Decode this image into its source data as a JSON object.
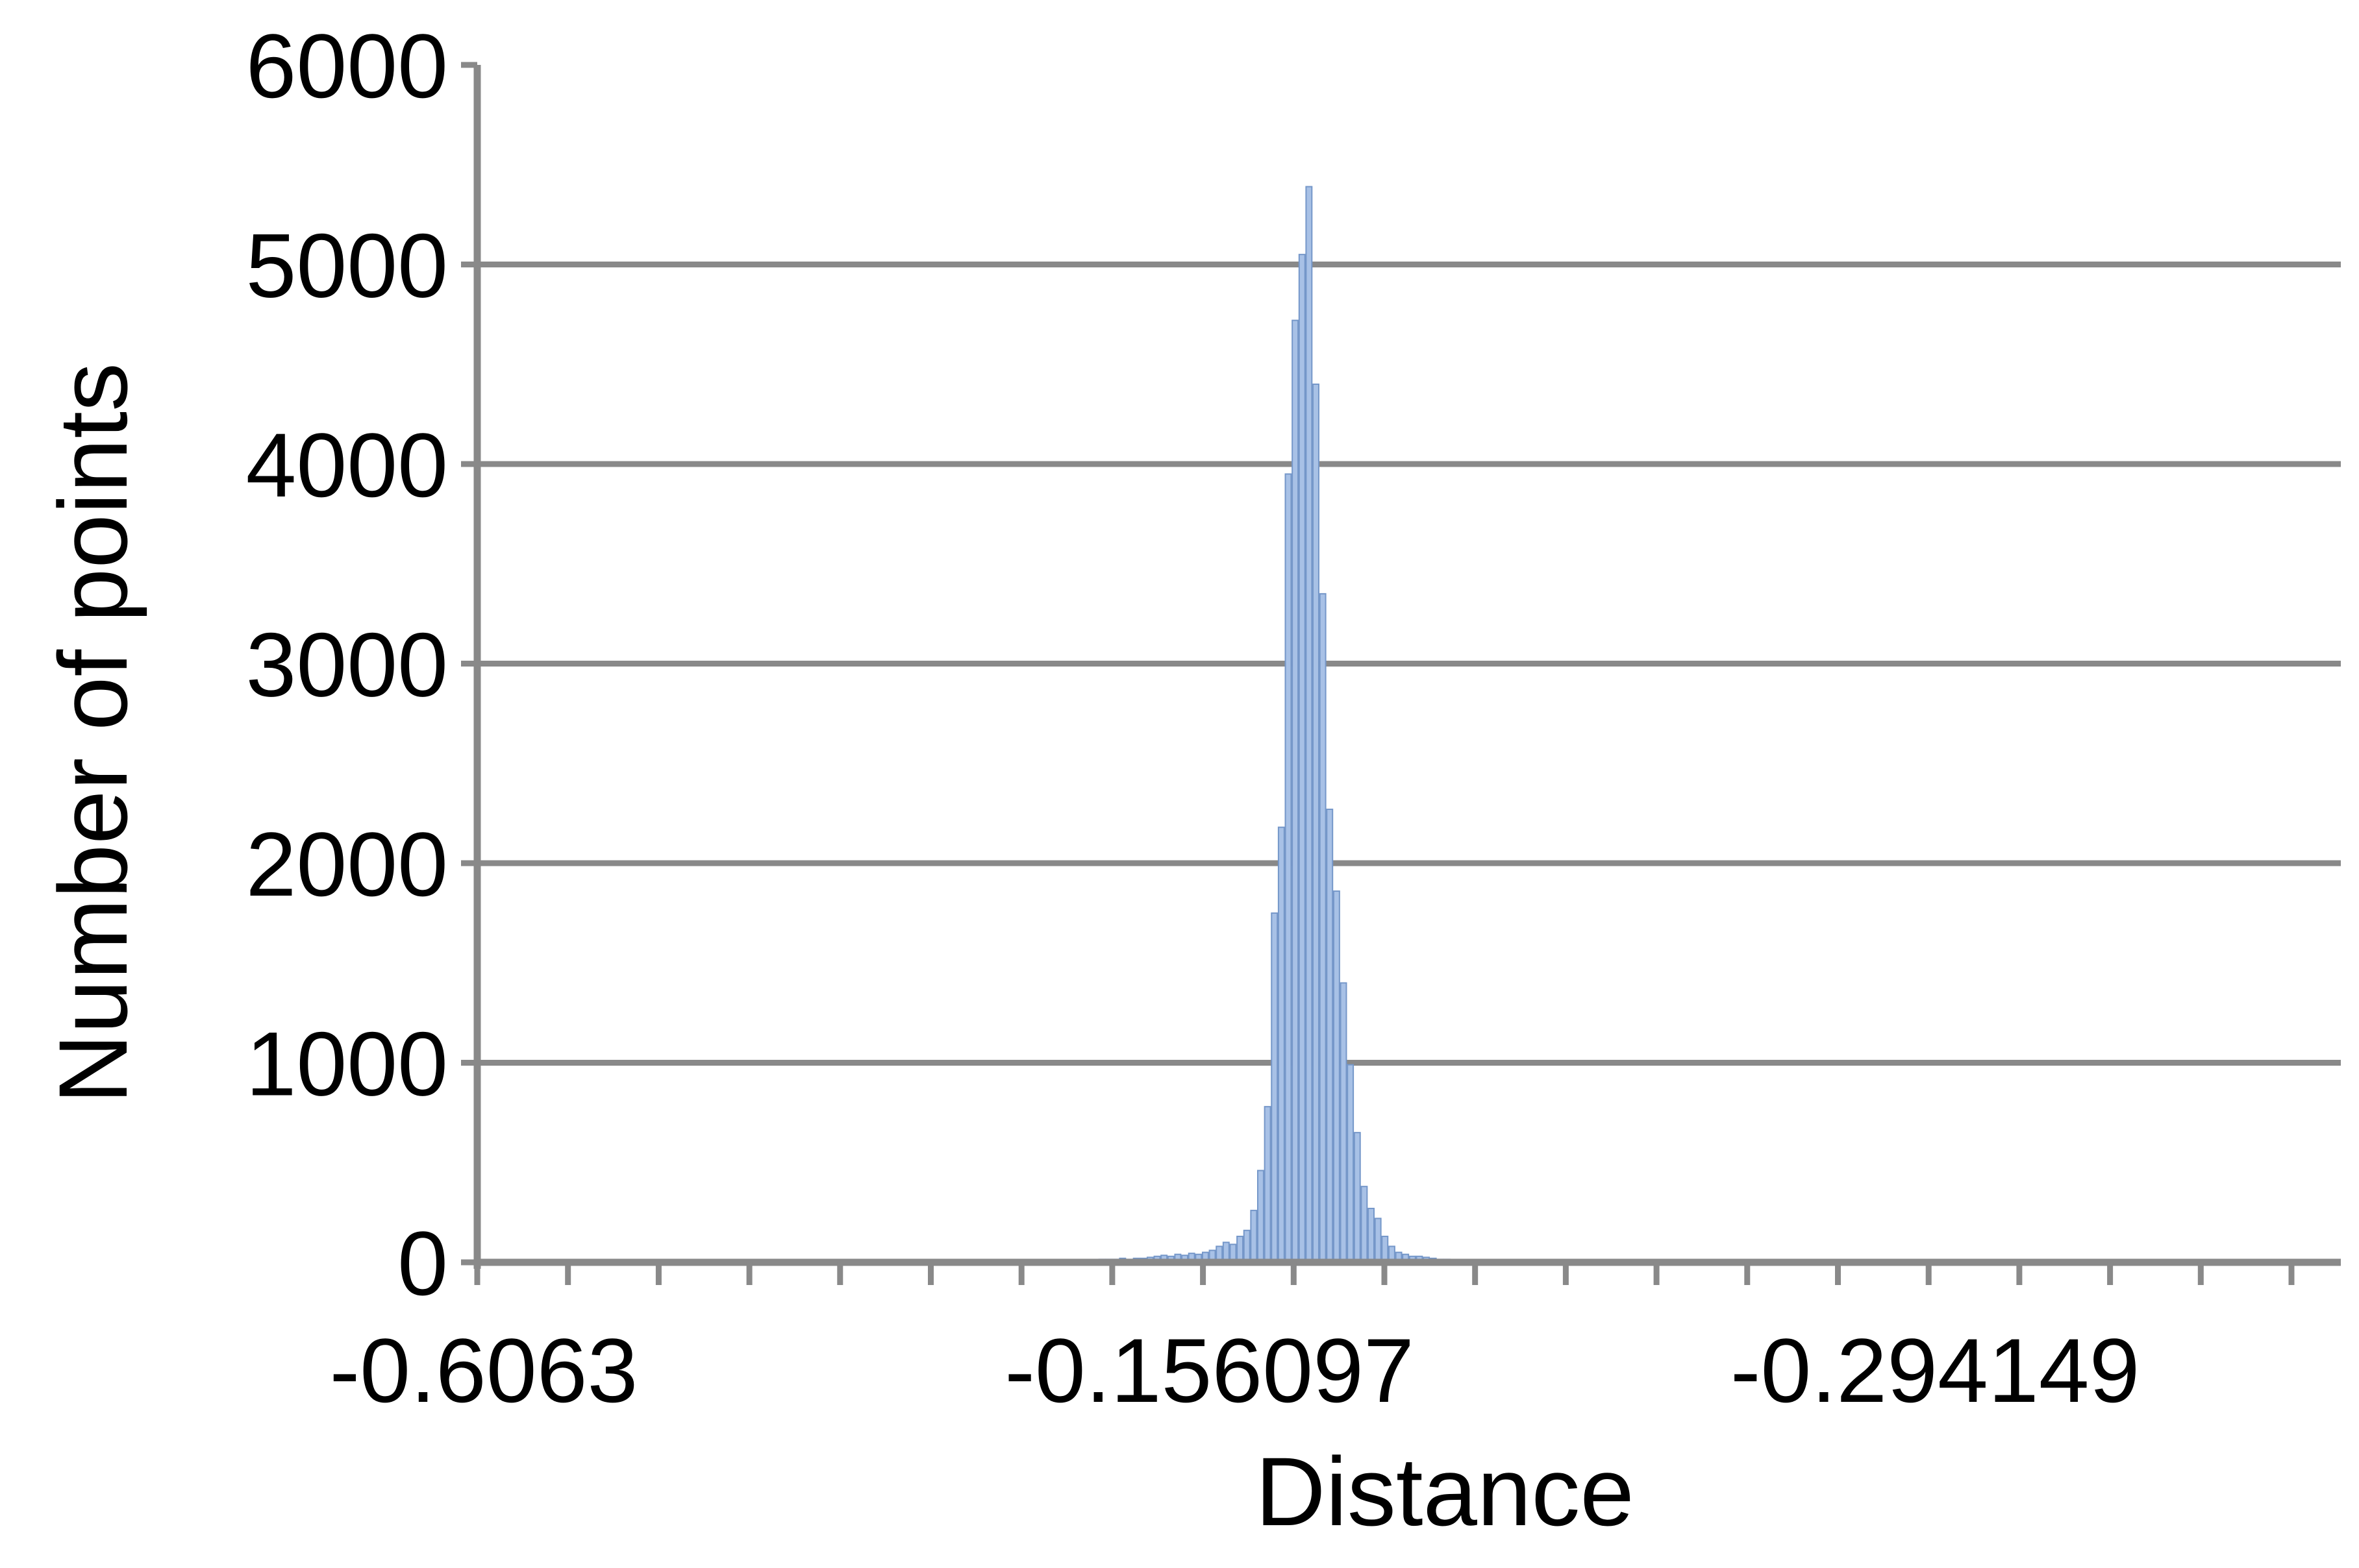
{
  "chart_data": {
    "type": "bar",
    "xlabel": "Distance",
    "ylabel": "Number of points",
    "ylim": [
      0,
      6000
    ],
    "y_ticks": [
      0,
      1000,
      2000,
      3000,
      4000,
      5000,
      6000
    ],
    "x_tick_labels": [
      "-0.6063",
      "-0.156097",
      "-0.294149"
    ],
    "grid": "horizontal",
    "legend": "none",
    "bar_color": "#a8c1e6",
    "bar_edge_color": "#7597c9",
    "values": [
      0,
      0,
      0,
      0,
      0,
      0,
      0,
      0,
      0,
      0,
      0,
      0,
      0,
      0,
      0,
      0,
      0,
      0,
      0,
      0,
      0,
      0,
      0,
      0,
      0,
      0,
      0,
      0,
      0,
      0,
      0,
      0,
      0,
      0,
      0,
      0,
      0,
      0,
      0,
      0,
      0,
      0,
      0,
      0,
      0,
      0,
      0,
      0,
      0,
      0,
      0,
      0,
      0,
      0,
      0,
      0,
      0,
      0,
      0,
      0,
      0,
      0,
      0,
      0,
      0,
      0,
      0,
      0,
      0,
      0,
      0,
      0,
      0,
      0,
      0,
      0,
      0,
      0,
      0,
      0,
      5,
      5,
      5,
      10,
      10,
      10,
      10,
      10,
      10,
      10,
      15,
      15,
      15,
      20,
      15,
      20,
      20,
      25,
      30,
      35,
      30,
      40,
      35,
      45,
      40,
      50,
      60,
      80,
      100,
      90,
      130,
      160,
      260,
      460,
      780,
      1750,
      2180,
      3950,
      4720,
      5050,
      5390,
      4400,
      3350,
      2270,
      1860,
      1400,
      990,
      650,
      380,
      270,
      220,
      130,
      80,
      50,
      40,
      30,
      30,
      25,
      20,
      15,
      15,
      10,
      10,
      10,
      5,
      5,
      5,
      0,
      0,
      0,
      0,
      0,
      0,
      0,
      0,
      0,
      0,
      0,
      0,
      0,
      0,
      0,
      0,
      0,
      0,
      0,
      0,
      0,
      0,
      0,
      0,
      0,
      0,
      0,
      0,
      0,
      0,
      0,
      0,
      0,
      0,
      0,
      0,
      0,
      0,
      0,
      0,
      0,
      0,
      0,
      0,
      0,
      0,
      0,
      0,
      0,
      0,
      0,
      0,
      0,
      0,
      0,
      0,
      0,
      0,
      0,
      0,
      0,
      0,
      0,
      0,
      0,
      0,
      0,
      0,
      0,
      0,
      0,
      0,
      0,
      0,
      0,
      0,
      0,
      0,
      0,
      0,
      0,
      0,
      0,
      0,
      0,
      0,
      0,
      0,
      0,
      0,
      0,
      0,
      0,
      0,
      0,
      0,
      0,
      0,
      0,
      0,
      0,
      0,
      0,
      0,
      0,
      0,
      0,
      0,
      0,
      0,
      0,
      0,
      0,
      0,
      0,
      0,
      0,
      0,
      0,
      0,
      0,
      0,
      0
    ]
  }
}
